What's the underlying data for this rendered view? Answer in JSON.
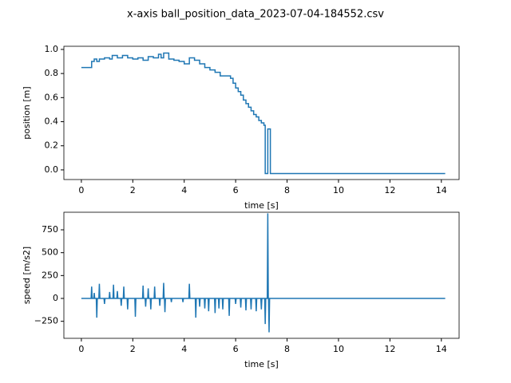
{
  "title": "x-axis ball_position_data_2023-07-04-184552.csv",
  "chart_data": [
    {
      "type": "line",
      "drawstyle": "steps-post",
      "xlabel": "time [s]",
      "ylabel": "position [m]",
      "xlim": [
        -0.68,
        14.69
      ],
      "ylim": [
        -0.08,
        1.026
      ],
      "xticks": [
        0,
        2,
        4,
        6,
        8,
        10,
        12,
        14
      ],
      "yticks": [
        {
          "value": 0,
          "label": "0.0"
        },
        {
          "value": 0.2,
          "label": "0.2"
        },
        {
          "value": 0.4,
          "label": "0.4"
        },
        {
          "value": 0.6,
          "label": "0.6"
        },
        {
          "value": 0.8,
          "label": "0.8"
        },
        {
          "value": 1,
          "label": "1.0"
        }
      ],
      "x": [
        0,
        0.4,
        0.5,
        0.6,
        0.7,
        0.9,
        1.1,
        1.2,
        1.4,
        1.6,
        1.8,
        2.0,
        2.2,
        2.4,
        2.6,
        2.8,
        3.0,
        3.1,
        3.2,
        3.4,
        3.6,
        3.8,
        4.0,
        4.2,
        4.4,
        4.6,
        4.8,
        5.0,
        5.2,
        5.4,
        5.8,
        5.9,
        6.0,
        6.1,
        6.2,
        6.3,
        6.4,
        6.5,
        6.6,
        6.7,
        6.8,
        6.9,
        7.0,
        7.1,
        7.15,
        7.25,
        7.35,
        14.15
      ],
      "series": [
        {
          "color": "#1f77b4",
          "values": [
            0.85,
            0.9,
            0.92,
            0.9,
            0.92,
            0.93,
            0.92,
            0.95,
            0.93,
            0.95,
            0.93,
            0.92,
            0.93,
            0.91,
            0.94,
            0.93,
            0.96,
            0.93,
            0.97,
            0.92,
            0.91,
            0.9,
            0.88,
            0.93,
            0.91,
            0.88,
            0.85,
            0.83,
            0.81,
            0.78,
            0.76,
            0.72,
            0.68,
            0.65,
            0.62,
            0.58,
            0.55,
            0.52,
            0.49,
            0.46,
            0.44,
            0.41,
            0.39,
            0.37,
            -0.03,
            0.34,
            -0.03,
            -0.03
          ]
        }
      ]
    },
    {
      "type": "line",
      "xlabel": "time [s]",
      "ylabel": "speed [m/s2]",
      "xlim": [
        -0.68,
        14.69
      ],
      "ylim": [
        -436,
        942
      ],
      "xticks": [
        0,
        2,
        4,
        6,
        8,
        10,
        12,
        14
      ],
      "yticks": [
        {
          "value": -250,
          "label": "−250"
        },
        0,
        250,
        500,
        750
      ],
      "x": [
        0,
        0.38,
        0.4,
        0.42,
        0.48,
        0.5,
        0.52,
        0.58,
        0.6,
        0.62,
        0.68,
        0.7,
        0.72,
        0.88,
        0.9,
        0.92,
        1.08,
        1.1,
        1.12,
        1.23,
        1.25,
        1.27,
        1.38,
        1.4,
        1.42,
        1.53,
        1.55,
        1.57,
        1.63,
        1.65,
        1.67,
        1.78,
        1.8,
        1.82,
        2.08,
        2.1,
        2.12,
        2.38,
        2.4,
        2.42,
        2.48,
        2.5,
        2.52,
        2.58,
        2.6,
        2.62,
        2.68,
        2.7,
        2.72,
        2.83,
        2.85,
        2.87,
        3.03,
        3.05,
        3.07,
        3.18,
        3.2,
        3.22,
        3.23,
        3.25,
        3.27,
        3.48,
        3.5,
        3.52,
        3.93,
        3.95,
        3.97,
        4.18,
        4.2,
        4.22,
        4.43,
        4.45,
        4.47,
        4.58,
        4.6,
        4.62,
        4.78,
        4.8,
        4.82,
        4.93,
        4.95,
        4.97,
        5.18,
        5.2,
        5.22,
        5.33,
        5.35,
        5.37,
        5.48,
        5.5,
        5.52,
        5.73,
        5.75,
        5.77,
        5.98,
        6.0,
        6.02,
        6.18,
        6.2,
        6.22,
        6.38,
        6.4,
        6.42,
        6.58,
        6.6,
        6.62,
        6.78,
        6.8,
        6.82,
        6.98,
        7.0,
        7.02,
        7.13,
        7.15,
        7.17,
        7.23,
        7.25,
        7.27,
        7.28,
        7.3,
        7.32,
        14.15
      ],
      "series": [
        {
          "color": "#1f77b4",
          "values": [
            0,
            0,
            130,
            0,
            0,
            60,
            0,
            0,
            -210,
            0,
            0,
            160,
            0,
            0,
            -60,
            0,
            0,
            70,
            0,
            0,
            150,
            0,
            0,
            80,
            0,
            0,
            -80,
            0,
            0,
            130,
            0,
            0,
            -120,
            0,
            0,
            -200,
            0,
            0,
            140,
            0,
            0,
            -90,
            0,
            0,
            110,
            0,
            0,
            -120,
            0,
            0,
            130,
            0,
            0,
            -80,
            0,
            0,
            170,
            0,
            0,
            -150,
            0,
            0,
            -40,
            0,
            0,
            -40,
            0,
            0,
            160,
            0,
            0,
            -210,
            0,
            0,
            -90,
            0,
            0,
            -110,
            0,
            0,
            -140,
            0,
            0,
            -160,
            0,
            0,
            -110,
            0,
            0,
            -120,
            0,
            0,
            -190,
            0,
            0,
            -60,
            0,
            0,
            -100,
            0,
            0,
            -130,
            0,
            0,
            -120,
            0,
            0,
            -140,
            0,
            0,
            -120,
            0,
            0,
            -280,
            0,
            0,
            930,
            0,
            0,
            -370,
            0,
            0
          ]
        }
      ]
    }
  ]
}
